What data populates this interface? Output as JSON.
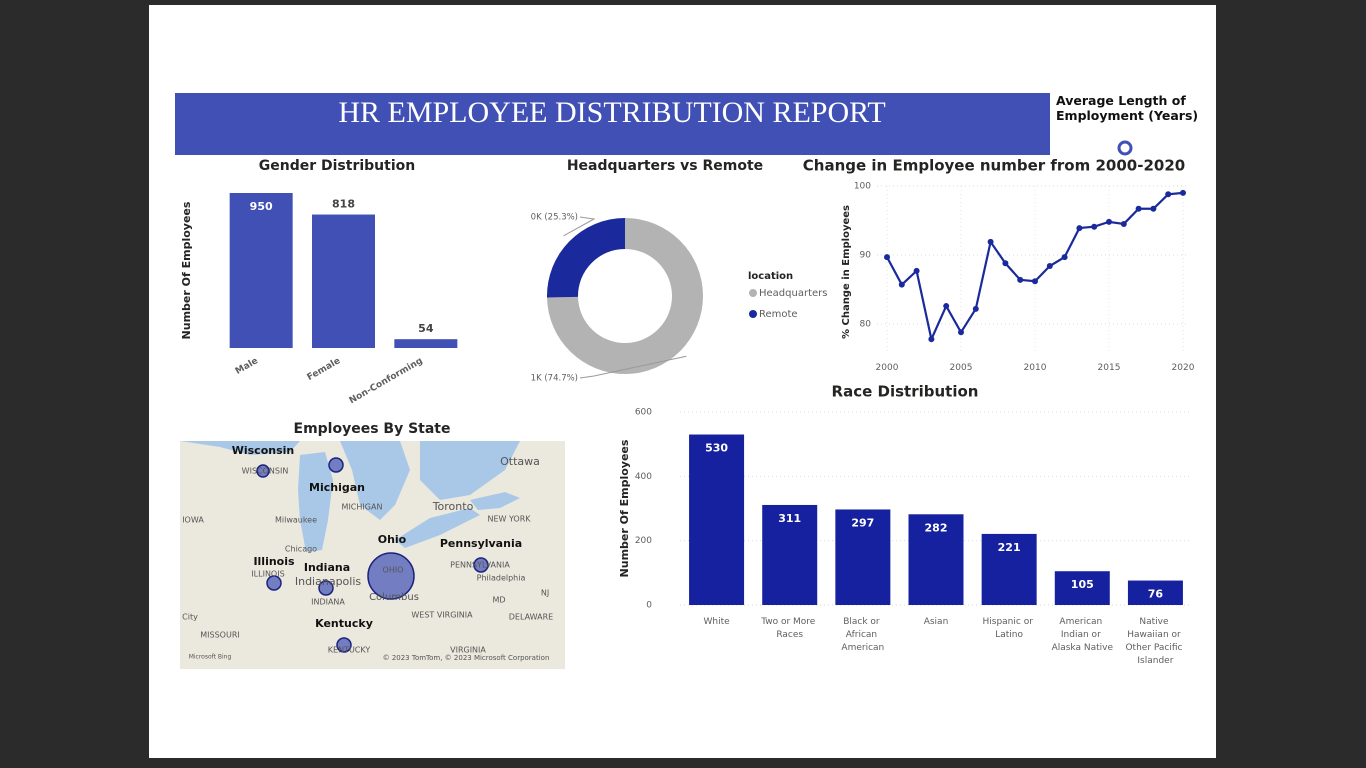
{
  "header": {
    "title": "HR EMPLOYEE DISTRIBUTION REPORT",
    "card_label": "Average Length of Employment (Years)"
  },
  "map": {
    "title": "Employees By State",
    "labels": [
      "Wisconsin",
      "WISCONSIN",
      "Michigan",
      "MICHIGAN",
      "Ottawa",
      "Toronto",
      "IOWA",
      "Milwaukee",
      "NEW YORK",
      "Chicago",
      "Ohio",
      "Pennsylvania",
      "Illinois",
      "ILLINOIS",
      "Indiana",
      "Indianapolis",
      "OHIO",
      "PENNSYLVANIA",
      "Philadelphia",
      "INDIANA",
      "Columbus",
      "WEST VIRGINIA",
      "MD",
      "NJ",
      "DELAWARE",
      "City",
      "MISSOURI",
      "Kentucky",
      "KENTUCKY",
      "VIRGINIA",
      "Microsoft Bing",
      "© 2023 TomTom, © 2023 Microsoft Corporation"
    ]
  },
  "chart_data": [
    {
      "type": "bar",
      "title": "Gender Distribution",
      "y_label": "Number Of Employees",
      "categories": [
        "Male",
        "Female",
        "Non-Conforming"
      ],
      "values": [
        950,
        818,
        54
      ],
      "color": "#4050b5",
      "ylim": [
        0,
        950
      ]
    },
    {
      "type": "pie",
      "title": "Headquarters vs Remote",
      "legend_title": "location",
      "categories": [
        "Headquarters",
        "Remote"
      ],
      "values": [
        74.7,
        25.3
      ],
      "value_labels": [
        "1K (74.7%)",
        "0K (25.3%)"
      ],
      "colors": [
        "#b3b3b3",
        "#1a2a9c"
      ]
    },
    {
      "type": "line",
      "title": "Change in Employee number from 2000-2020",
      "y_label": "% Change in Employees",
      "x": [
        2000,
        2001,
        2002,
        2003,
        2004,
        2005,
        2006,
        2007,
        2008,
        2009,
        2010,
        2011,
        2012,
        2013,
        2014,
        2015,
        2016,
        2017,
        2018,
        2019,
        2020
      ],
      "values": [
        89.7,
        85.7,
        87.7,
        77.8,
        82.6,
        78.8,
        82.2,
        91.9,
        88.8,
        86.4,
        86.2,
        88.4,
        89.7,
        93.9,
        94.1,
        94.8,
        94.5,
        96.7,
        96.7,
        98.8,
        99.0
      ],
      "color": "#1a2a9c",
      "xlim": [
        2000,
        2020
      ],
      "xticks": [
        2000,
        2005,
        2010,
        2015,
        2020
      ],
      "ylim": [
        76,
        100
      ],
      "yticks": [
        80,
        90,
        100
      ],
      "grid": true
    },
    {
      "type": "bar",
      "title": "Race Distribution",
      "y_label": "Number Of Employees",
      "categories": [
        "White",
        "Two or More Races",
        "Black or African American",
        "Asian",
        "Hispanic or Latino",
        "American Indian or Alaska Native",
        "Native Hawaiian or Other Pacific Islander"
      ],
      "values": [
        530,
        311,
        297,
        282,
        221,
        105,
        76
      ],
      "color": "#1621a0",
      "ylim": [
        0,
        600
      ],
      "yticks": [
        0,
        200,
        400,
        600
      ],
      "grid": true
    }
  ]
}
